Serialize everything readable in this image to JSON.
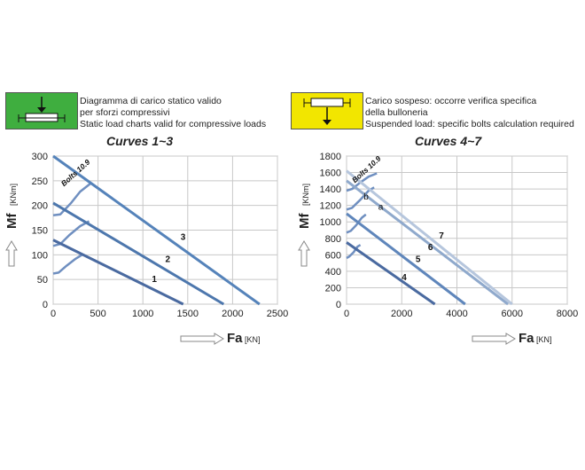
{
  "left_panel": {
    "caption": [
      "Diagramma di carico statico valido",
      "per sforzi compressivi",
      "Static load charts valid for compressive loads"
    ],
    "title": "Curves 1~3",
    "badge_color": "#3fae3f",
    "badge_icon": "compressive-load-icon"
  },
  "right_panel": {
    "caption": [
      "Carico sospeso: occorre verifica specifica",
      "della bulloneria",
      "Suspended load:  specific bolts calculation required"
    ],
    "title": "Curves 4~7",
    "badge_color": "#f2e600",
    "badge_icon": "suspended-load-icon"
  },
  "chart_data": [
    {
      "type": "line",
      "title": "Curves 1~3",
      "ylabel": "Mf",
      "yunit": "[KNm]",
      "xlabel": "Fa",
      "xunit": "[KN]",
      "xlim": [
        0,
        2500
      ],
      "ylim": [
        0,
        300
      ],
      "xticks": [
        0,
        500,
        1000,
        1500,
        2000,
        2500
      ],
      "yticks": [
        0,
        50,
        100,
        150,
        200,
        250,
        300
      ],
      "grid": true,
      "bolt_label": "Bolts 10.9",
      "series": [
        {
          "name": "1",
          "color": "#4a6aa0",
          "points": [
            [
              0,
              130
            ],
            [
              1450,
              0
            ]
          ],
          "label_at": [
            1100,
            45
          ]
        },
        {
          "name": "2",
          "color": "#4d77ad",
          "points": [
            [
              0,
              205
            ],
            [
              1900,
              0
            ]
          ],
          "label_at": [
            1250,
            85
          ]
        },
        {
          "name": "3",
          "color": "#5583ba",
          "points": [
            [
              0,
              300
            ],
            [
              2300,
              0
            ]
          ],
          "label_at": [
            1420,
            130
          ]
        }
      ],
      "bolt_curves": [
        [
          [
            0,
            62
          ],
          [
            60,
            64
          ],
          [
            150,
            78
          ],
          [
            250,
            92
          ],
          [
            330,
            101
          ]
        ],
        [
          [
            0,
            118
          ],
          [
            80,
            122
          ],
          [
            180,
            140
          ],
          [
            300,
            158
          ],
          [
            400,
            168
          ]
        ],
        [
          [
            0,
            180
          ],
          [
            80,
            182
          ],
          [
            200,
            205
          ],
          [
            300,
            228
          ],
          [
            420,
            245
          ]
        ]
      ]
    },
    {
      "type": "line",
      "title": "Curves 4~7",
      "ylabel": "Mf",
      "yunit": "[KNm]",
      "xlabel": "Fa",
      "xunit": "[KN]",
      "xlim": [
        0,
        8000
      ],
      "ylim": [
        0,
        1800
      ],
      "xticks": [
        0,
        2000,
        4000,
        6000,
        8000
      ],
      "yticks": [
        0,
        200,
        400,
        600,
        800,
        1000,
        1200,
        1400,
        1600,
        1800
      ],
      "grid": true,
      "bolt_label": "Bolts 10.9",
      "series": [
        {
          "name": "4",
          "color": "#4a6aa0",
          "points": [
            [
              0,
              750
            ],
            [
              3200,
              0
            ]
          ],
          "label_at": [
            2000,
            290
          ]
        },
        {
          "name": "5",
          "color": "#5f86bb",
          "points": [
            [
              0,
              1100
            ],
            [
              4300,
              0
            ]
          ],
          "label_at": [
            2500,
            510
          ]
        },
        {
          "name": "6",
          "color": "#8fa9cc",
          "points": [
            [
              0,
              1500
            ],
            [
              5850,
              0
            ]
          ],
          "label_at": [
            2950,
            660
          ]
        },
        {
          "name": "7",
          "color": "#b6c6dd",
          "points": [
            [
              0,
              1620
            ],
            [
              6000,
              0
            ]
          ],
          "label_at": [
            3350,
            800
          ]
        }
      ],
      "bolt_curves": [
        [
          [
            0,
            560
          ],
          [
            100,
            580
          ],
          [
            250,
            630
          ],
          [
            400,
            700
          ],
          [
            500,
            720
          ]
        ],
        [
          [
            0,
            870
          ],
          [
            150,
            890
          ],
          [
            350,
            960
          ],
          [
            550,
            1050
          ],
          [
            700,
            1090
          ]
        ],
        [
          [
            0,
            1150
          ],
          [
            200,
            1170
          ],
          [
            500,
            1270
          ],
          [
            800,
            1380
          ],
          [
            1000,
            1420
          ]
        ],
        [
          [
            0,
            1380
          ],
          [
            200,
            1400
          ],
          [
            500,
            1480
          ],
          [
            800,
            1550
          ],
          [
            1100,
            1590
          ]
        ]
      ],
      "markers": [
        {
          "text": "a",
          "at": [
            1150,
            1150
          ]
        },
        {
          "text": "b",
          "at": [
            620,
            1270
          ]
        }
      ]
    }
  ]
}
